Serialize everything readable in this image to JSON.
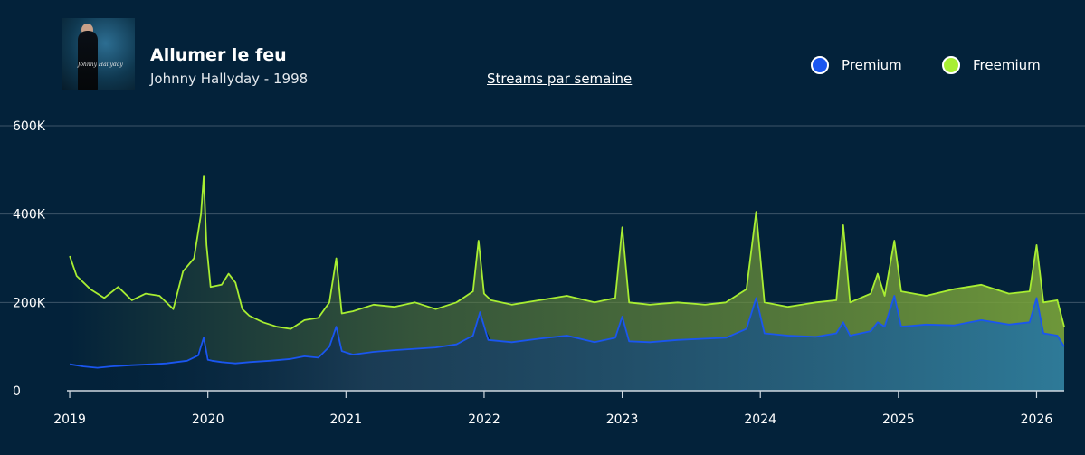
{
  "header": {
    "title": "Allumer le feu",
    "subtitle": "Johnny Hallyday - 1998",
    "metric_link": "Streams par semaine",
    "cover_text": "Johnny Hallyday"
  },
  "colors": {
    "background": "#03223a",
    "premium": "#1a56f0",
    "freemium": "#a8ee32",
    "grid": "#3d5468",
    "axis": "#cfd8e0"
  },
  "chart_data": {
    "type": "area",
    "title": "Streams par semaine",
    "xlabel": "",
    "ylabel": "",
    "ylim": [
      0,
      600000
    ],
    "yticks": [
      0,
      200000,
      400000,
      600000
    ],
    "ytick_labels": [
      "0",
      "200K",
      "400K",
      "600K"
    ],
    "xticks": [
      2019,
      2020,
      2021,
      2022,
      2023,
      2024,
      2025,
      2026
    ],
    "xtick_labels": [
      "2019",
      "2020",
      "2021",
      "2022",
      "2023",
      "2024",
      "2025",
      "2026"
    ],
    "xlim": [
      2018.98,
      2026.2
    ],
    "legend": [
      "Premium",
      "Freemium"
    ],
    "legend_position": "top-right",
    "series": [
      {
        "name": "Premium",
        "x": [
          2019.0,
          2019.1,
          2019.2,
          2019.3,
          2019.45,
          2019.6,
          2019.7,
          2019.85,
          2019.93,
          2019.97,
          2020.0,
          2020.03,
          2020.1,
          2020.2,
          2020.3,
          2020.45,
          2020.6,
          2020.7,
          2020.8,
          2020.88,
          2020.93,
          2020.97,
          2021.05,
          2021.2,
          2021.35,
          2021.5,
          2021.65,
          2021.8,
          2021.92,
          2021.97,
          2022.03,
          2022.2,
          2022.4,
          2022.6,
          2022.8,
          2022.95,
          2023.0,
          2023.05,
          2023.2,
          2023.4,
          2023.6,
          2023.75,
          2023.9,
          2023.97,
          2024.03,
          2024.2,
          2024.4,
          2024.55,
          2024.6,
          2024.65,
          2024.8,
          2024.85,
          2024.9,
          2024.97,
          2025.02,
          2025.2,
          2025.4,
          2025.6,
          2025.8,
          2025.95,
          2026.0,
          2026.05,
          2026.15,
          2026.2
        ],
        "values": [
          60000,
          55000,
          52000,
          55000,
          58000,
          60000,
          62000,
          68000,
          80000,
          120000,
          70000,
          68000,
          65000,
          62000,
          65000,
          68000,
          72000,
          78000,
          75000,
          100000,
          145000,
          90000,
          82000,
          88000,
          92000,
          95000,
          98000,
          105000,
          125000,
          178000,
          115000,
          110000,
          118000,
          125000,
          110000,
          120000,
          168000,
          112000,
          110000,
          115000,
          118000,
          120000,
          140000,
          210000,
          130000,
          125000,
          122000,
          130000,
          155000,
          125000,
          135000,
          155000,
          145000,
          215000,
          145000,
          150000,
          148000,
          160000,
          150000,
          155000,
          210000,
          130000,
          125000,
          100000
        ]
      },
      {
        "name": "Freemium",
        "x": [
          2019.0,
          2019.05,
          2019.15,
          2019.25,
          2019.35,
          2019.45,
          2019.55,
          2019.65,
          2019.75,
          2019.82,
          2019.9,
          2019.95,
          2019.97,
          2019.99,
          2020.02,
          2020.1,
          2020.15,
          2020.2,
          2020.25,
          2020.3,
          2020.4,
          2020.5,
          2020.6,
          2020.7,
          2020.8,
          2020.88,
          2020.93,
          2020.97,
          2021.05,
          2021.2,
          2021.35,
          2021.5,
          2021.65,
          2021.8,
          2021.92,
          2021.96,
          2022.0,
          2022.05,
          2022.2,
          2022.4,
          2022.6,
          2022.8,
          2022.95,
          2023.0,
          2023.05,
          2023.2,
          2023.4,
          2023.6,
          2023.75,
          2023.9,
          2023.97,
          2024.03,
          2024.2,
          2024.4,
          2024.55,
          2024.6,
          2024.65,
          2024.8,
          2024.85,
          2024.9,
          2024.97,
          2025.02,
          2025.2,
          2025.4,
          2025.6,
          2025.8,
          2025.95,
          2026.0,
          2026.05,
          2026.15,
          2026.2
        ],
        "values": [
          305000,
          260000,
          230000,
          210000,
          235000,
          205000,
          220000,
          215000,
          185000,
          270000,
          300000,
          400000,
          485000,
          330000,
          235000,
          240000,
          265000,
          245000,
          185000,
          170000,
          155000,
          145000,
          140000,
          160000,
          165000,
          200000,
          300000,
          175000,
          180000,
          195000,
          190000,
          200000,
          185000,
          200000,
          225000,
          340000,
          220000,
          205000,
          195000,
          205000,
          215000,
          200000,
          210000,
          370000,
          200000,
          195000,
          200000,
          195000,
          200000,
          230000,
          405000,
          200000,
          190000,
          200000,
          205000,
          375000,
          200000,
          220000,
          265000,
          215000,
          340000,
          225000,
          215000,
          230000,
          240000,
          220000,
          225000,
          330000,
          200000,
          205000,
          145000
        ]
      }
    ]
  }
}
